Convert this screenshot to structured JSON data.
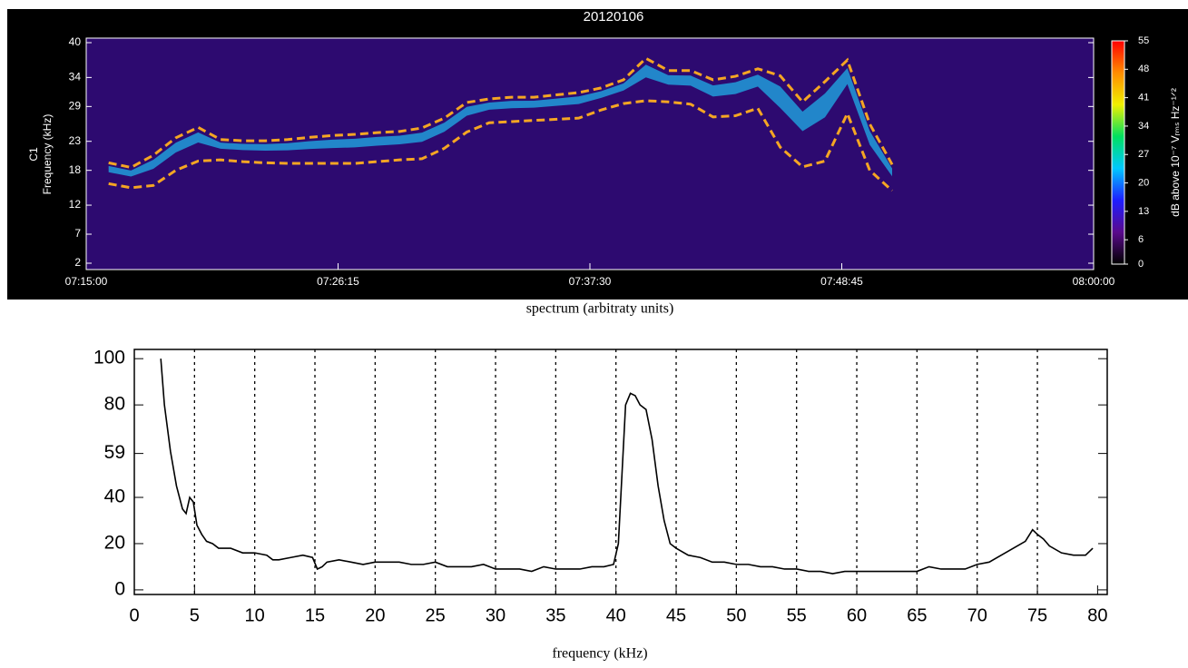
{
  "chart_data": [
    {
      "type": "spectrogram",
      "title": "20120106",
      "panel_label": "C1",
      "ylabel": "Frequency (kHz)",
      "xlim": [
        "07:15:00",
        "08:00:00"
      ],
      "xticks": [
        "07:15:00",
        "07:26:15",
        "07:37:30",
        "07:48:45",
        "08:00:00"
      ],
      "ylim": [
        2,
        40
      ],
      "yticks": [
        2,
        7,
        12,
        18,
        23,
        29,
        34,
        40
      ],
      "background_color": "#2d0a70",
      "x": [
        "07:16:00",
        "07:17:00",
        "07:18:00",
        "07:19:00",
        "07:20:00",
        "07:21:00",
        "07:22:00",
        "07:23:00",
        "07:24:00",
        "07:25:00",
        "07:26:00",
        "07:27:00",
        "07:28:00",
        "07:29:00",
        "07:30:00",
        "07:31:00",
        "07:32:00",
        "07:33:00",
        "07:34:00",
        "07:35:00",
        "07:36:00",
        "07:37:00",
        "07:38:00",
        "07:39:00",
        "07:40:00",
        "07:41:00",
        "07:42:00",
        "07:43:00",
        "07:44:00",
        "07:45:00",
        "07:46:00",
        "07:47:00",
        "07:48:00",
        "07:49:00",
        "07:50:00",
        "07:51:00"
      ],
      "series": [
        {
          "color": "#f5a623",
          "values": [
            19.3,
            18.5,
            20.6,
            23.6,
            25.4,
            23.3,
            23.1,
            23.1,
            23.3,
            23.7,
            24.0,
            24.2,
            24.5,
            24.7,
            25.3,
            27.0,
            29.7,
            30.3,
            30.6,
            30.6,
            31.0,
            31.4,
            32.2,
            33.6,
            37.3,
            35.2,
            35.2,
            33.6,
            34.2,
            35.5,
            34.3,
            29.8,
            33.3,
            37.0,
            26.0,
            19.0
          ]
        },
        {
          "color": "#f5a623",
          "values": [
            15.7,
            15.0,
            15.4,
            18.0,
            19.6,
            19.8,
            19.5,
            19.3,
            19.2,
            19.2,
            19.2,
            19.2,
            19.5,
            19.8,
            20.0,
            21.8,
            24.6,
            26.2,
            26.4,
            26.6,
            26.8,
            27.0,
            28.4,
            29.5,
            30.0,
            29.8,
            29.4,
            27.2,
            27.4,
            28.7,
            22.0,
            18.6,
            19.6,
            27.8,
            18.0,
            14.5
          ]
        }
      ],
      "clim": [
        0,
        55
      ],
      "cticks": [
        0,
        6,
        13,
        20,
        27,
        34,
        41,
        48,
        55
      ],
      "clabel": "dB above 10⁻⁷ Vᵣₘₛ Hz⁻¹ᐟ²",
      "colormap": [
        "#000000",
        "#5a0a8c",
        "#1e1eff",
        "#00c8ff",
        "#00e060",
        "#f0f000",
        "#ff8c00",
        "#ff0000"
      ]
    },
    {
      "type": "line",
      "ylabel": "spectrum (arbitraty  units)",
      "xlabel": "frequency (kHz)",
      "xlim": [
        0,
        80.8
      ],
      "xticks": [
        0,
        5,
        10,
        15,
        20,
        25,
        30,
        35,
        40,
        45,
        50,
        55,
        60,
        65,
        70,
        75,
        80
      ],
      "ylim": [
        -2,
        104
      ],
      "yticks": [
        0,
        20,
        40,
        59,
        80,
        100
      ],
      "grid": true,
      "color": "#000000",
      "x": [
        2.2,
        2.5,
        3,
        3.5,
        4,
        4.3,
        4.6,
        4.9,
        5.2,
        5.6,
        6,
        6.5,
        7,
        8,
        9,
        10,
        11,
        11.5,
        12,
        13,
        14,
        14.8,
        15.2,
        15.6,
        16,
        17,
        18,
        19,
        20,
        21,
        22,
        23,
        24,
        25,
        26,
        27,
        28,
        29,
        30,
        31,
        32,
        33,
        34,
        35,
        36,
        37,
        38,
        39,
        39.8,
        40.2,
        40.5,
        40.8,
        41.2,
        41.6,
        42,
        42.5,
        43,
        43.5,
        44,
        44.5,
        45,
        46,
        47,
        48,
        49,
        50,
        51,
        52,
        53,
        54,
        55,
        56,
        57,
        58,
        59,
        60,
        61,
        62,
        63,
        64,
        65,
        66,
        67,
        68,
        69,
        70,
        71,
        72,
        73,
        74,
        74.6,
        75,
        75.5,
        76,
        77,
        78,
        79,
        79.6
      ],
      "values": [
        100,
        80,
        60,
        45,
        35,
        33,
        40,
        38,
        28,
        24,
        21,
        20,
        18,
        18,
        16,
        16,
        15,
        13,
        13,
        14,
        15,
        14,
        9,
        10,
        12,
        13,
        12,
        11,
        12,
        12,
        12,
        11,
        11,
        12,
        10,
        10,
        10,
        11,
        9,
        9,
        9,
        8,
        10,
        9,
        9,
        9,
        10,
        10,
        11,
        20,
        50,
        80,
        85,
        84,
        80,
        78,
        65,
        45,
        30,
        20,
        18,
        15,
        14,
        12,
        12,
        11,
        11,
        10,
        10,
        9,
        9,
        8,
        8,
        7,
        8,
        8,
        8,
        8,
        8,
        8,
        8,
        10,
        9,
        9,
        9,
        11,
        12,
        15,
        18,
        21,
        26,
        24,
        22,
        19,
        16,
        15,
        15,
        18
      ]
    }
  ]
}
